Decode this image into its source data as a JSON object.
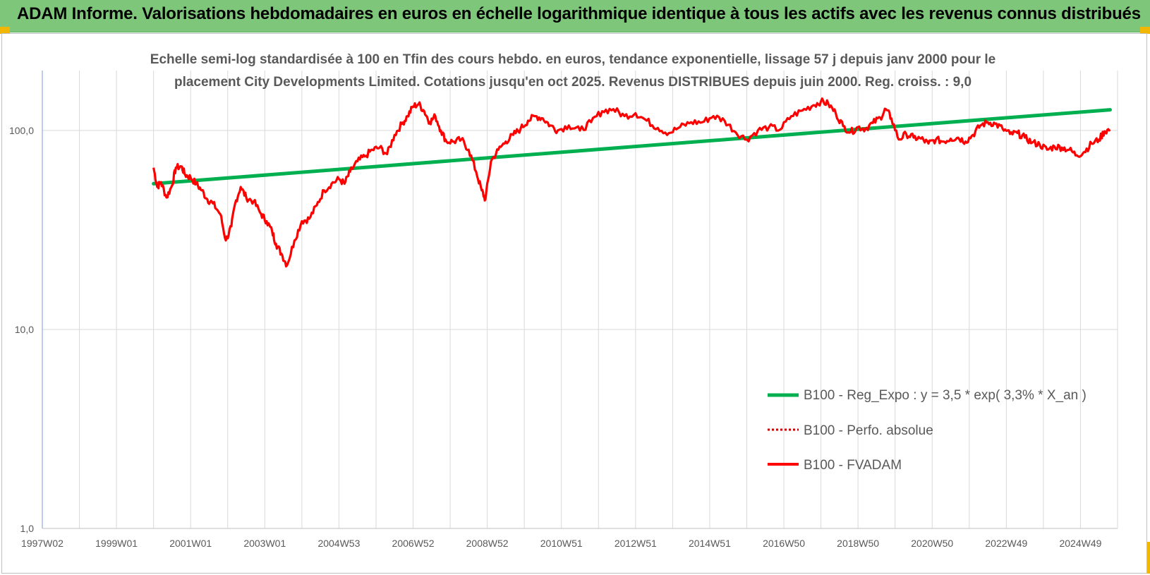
{
  "header": {
    "title": "ADAM Informe. Valorisations hebdomadaires en euros en échelle logarithmique identique à tous les actifs avec les revenus connus distribués"
  },
  "colors": {
    "banner": "#7dc67a",
    "regression": "#00b050",
    "fvadam": "#ff0000",
    "perfo": "#c00000",
    "grid": "#d9d9d9",
    "axis": "#8faadc"
  },
  "chart_data": {
    "type": "line",
    "title_lines": [
      "Echelle semi-log standardisée à 100 en Tfin des cours hebdo. en euros, tendance exponentielle, lissage 57 j depuis janv 2000 pour le",
      "placement City Developments Limited. Cotations jusqu'en oct 2025. Revenus DISTRIBUES depuis juin 2000. Reg. croiss. : 9,0"
    ],
    "y_scale": "log",
    "ylim": [
      1,
      200
    ],
    "y_ticks": [
      "1,0",
      "10,0",
      "100,0"
    ],
    "xlim": [
      1997.0,
      2026.0
    ],
    "x_ticks": [
      "1997W02",
      "1999W01",
      "2001W01",
      "2003W01",
      "2004W53",
      "2006W52",
      "2008W52",
      "2010W51",
      "2012W51",
      "2014W51",
      "2016W50",
      "2018W50",
      "2020W50",
      "2022W49",
      "2024W49"
    ],
    "grid": true,
    "legend_position": "bottom-right",
    "series": [
      {
        "name": "B100 - Reg_Expo : y = 3,5 * exp( 3,3% *  X_an )",
        "style": "solid-green",
        "x": [
          2000.0,
          2025.8
        ],
        "y": [
          54,
          127
        ]
      },
      {
        "name": "B100 - Perfo. absolue",
        "style": "dotted-red",
        "x": [],
        "y": []
      },
      {
        "name": "B100 - FVADAM",
        "style": "solid-red",
        "x": [
          2000.0,
          2000.1,
          2000.2,
          2000.35,
          2000.5,
          2000.6,
          2000.75,
          2000.85,
          2001.0,
          2001.15,
          2001.3,
          2001.45,
          2001.6,
          2001.8,
          2001.95,
          2002.1,
          2002.2,
          2002.35,
          2002.5,
          2002.7,
          2002.9,
          2003.05,
          2003.2,
          2003.3,
          2003.45,
          2003.6,
          2003.8,
          2004.0,
          2004.2,
          2004.4,
          2004.6,
          2004.8,
          2005.0,
          2005.15,
          2005.3,
          2005.5,
          2005.7,
          2005.9,
          2006.1,
          2006.3,
          2006.5,
          2006.7,
          2006.85,
          2007.0,
          2007.15,
          2007.3,
          2007.45,
          2007.6,
          2007.75,
          2007.9,
          2008.1,
          2008.3,
          2008.5,
          2008.7,
          2008.85,
          2008.95,
          2009.1,
          2009.3,
          2009.5,
          2009.7,
          2009.9,
          2010.1,
          2010.3,
          2010.5,
          2010.7,
          2010.9,
          2011.2,
          2011.5,
          2011.8,
          2012.1,
          2012.4,
          2012.7,
          2013.0,
          2013.3,
          2013.6,
          2013.9,
          2014.2,
          2014.5,
          2014.8,
          2015.1,
          2015.4,
          2015.7,
          2016.0,
          2016.3,
          2016.6,
          2016.9,
          2017.2,
          2017.5,
          2017.8,
          2018.0,
          2018.2,
          2018.4,
          2018.6,
          2018.8,
          2019.0,
          2019.2,
          2019.4,
          2019.6,
          2019.75,
          2019.9,
          2020.1,
          2020.3,
          2020.5,
          2020.7,
          2020.9,
          2021.1,
          2021.3,
          2021.5,
          2021.7,
          2021.9,
          2022.1,
          2022.3,
          2022.5,
          2022.7,
          2022.9,
          2023.1,
          2023.3,
          2023.5,
          2023.7,
          2023.9,
          2024.1,
          2024.3,
          2024.5,
          2024.7,
          2024.9,
          2025.1,
          2025.3,
          2025.5,
          2025.65,
          2025.8
        ],
        "y": [
          65,
          52,
          55,
          46,
          53,
          65,
          66,
          60,
          58,
          54,
          50,
          45,
          43,
          38,
          28,
          33,
          43,
          52,
          46,
          44,
          38,
          35,
          31,
          27,
          24,
          21,
          28,
          35,
          36,
          42,
          50,
          54,
          57,
          54,
          62,
          70,
          74,
          80,
          82,
          76,
          95,
          108,
          118,
          132,
          136,
          125,
          110,
          118,
          100,
          88,
          88,
          90,
          80,
          62,
          50,
          45,
          70,
          80,
          88,
          95,
          102,
          112,
          118,
          115,
          106,
          100,
          106,
          100,
          110,
          125,
          128,
          118,
          122,
          112,
          103,
          97,
          104,
          110,
          110,
          118,
          112,
          98,
          90,
          100,
          104,
          101,
          118,
          126,
          134,
          140,
          136,
          122,
          105,
          98,
          104,
          102,
          109,
          116,
          128,
          115,
          90,
          96,
          92,
          91,
          86,
          90,
          88,
          91,
          92,
          88,
          95,
          106,
          110,
          108,
          102,
          96,
          97,
          92,
          87,
          85,
          80,
          83,
          82,
          80,
          75,
          78,
          86,
          90,
          99,
          101
        ]
      }
    ]
  }
}
